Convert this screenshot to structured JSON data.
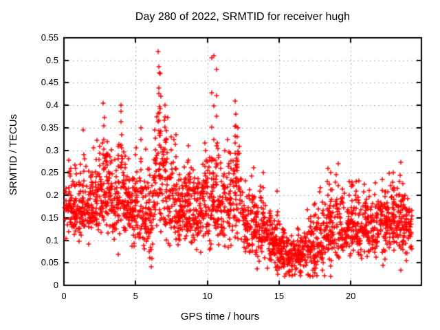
{
  "chart_data": {
    "type": "scatter",
    "title": "Day 280 of 2022, SRMTID for receiver hugh",
    "xlabel": "GPS time / hours",
    "ylabel": "SRMTID / TECUs",
    "xlim": [
      0,
      24.93
    ],
    "ylim": [
      0,
      0.55
    ],
    "xtick_labels": [
      "0",
      "5",
      "10",
      "15",
      "20"
    ],
    "ytick_labels": [
      "0",
      "0.05",
      "0.1",
      "0.15",
      "0.2",
      "0.25",
      "0.3",
      "0.35",
      "0.4",
      "0.45",
      "0.5",
      "0.55"
    ],
    "grid": true,
    "legend": null,
    "marker": {
      "symbol": "plus",
      "size": 7,
      "color": "#ff0000"
    },
    "colors": {
      "background": "#ffffff",
      "axis": "#000000",
      "grid": "#aaaaaa",
      "points": "#ff0000"
    },
    "seed": 42,
    "bursts": 430,
    "time_range": [
      0.05,
      24.25
    ],
    "envelope_note": "triples of [hour, typical_value, spread] read from the plot",
    "envelope": [
      [
        0.0,
        0.19,
        0.038
      ],
      [
        0.5,
        0.182,
        0.034
      ],
      [
        1.0,
        0.175,
        0.034
      ],
      [
        1.5,
        0.172,
        0.032
      ],
      [
        2.0,
        0.18,
        0.034
      ],
      [
        2.5,
        0.192,
        0.04
      ],
      [
        3.0,
        0.205,
        0.042
      ],
      [
        3.5,
        0.185,
        0.036
      ],
      [
        4.0,
        0.195,
        0.046
      ],
      [
        4.5,
        0.168,
        0.032
      ],
      [
        5.0,
        0.17,
        0.038
      ],
      [
        5.5,
        0.158,
        0.04
      ],
      [
        6.0,
        0.14,
        0.048
      ],
      [
        6.5,
        0.225,
        0.058
      ],
      [
        7.0,
        0.225,
        0.055
      ],
      [
        7.5,
        0.19,
        0.048
      ],
      [
        8.0,
        0.165,
        0.036
      ],
      [
        8.5,
        0.178,
        0.042
      ],
      [
        9.0,
        0.16,
        0.036
      ],
      [
        9.5,
        0.17,
        0.04
      ],
      [
        10.0,
        0.182,
        0.052
      ],
      [
        10.5,
        0.188,
        0.052
      ],
      [
        11.0,
        0.17,
        0.044
      ],
      [
        11.5,
        0.182,
        0.048
      ],
      [
        12.0,
        0.205,
        0.052
      ],
      [
        12.5,
        0.15,
        0.04
      ],
      [
        13.0,
        0.132,
        0.035
      ],
      [
        13.5,
        0.125,
        0.034
      ],
      [
        14.0,
        0.112,
        0.03
      ],
      [
        14.5,
        0.1,
        0.028
      ],
      [
        15.0,
        0.082,
        0.024
      ],
      [
        15.5,
        0.07,
        0.022
      ],
      [
        16.0,
        0.064,
        0.02
      ],
      [
        16.5,
        0.07,
        0.022
      ],
      [
        17.0,
        0.076,
        0.026
      ],
      [
        17.5,
        0.09,
        0.03
      ],
      [
        18.0,
        0.105,
        0.034
      ],
      [
        18.5,
        0.12,
        0.038
      ],
      [
        19.0,
        0.13,
        0.038
      ],
      [
        19.5,
        0.122,
        0.034
      ],
      [
        20.0,
        0.13,
        0.034
      ],
      [
        20.5,
        0.14,
        0.034
      ],
      [
        21.0,
        0.13,
        0.03
      ],
      [
        21.5,
        0.122,
        0.03
      ],
      [
        22.0,
        0.13,
        0.03
      ],
      [
        22.5,
        0.14,
        0.032
      ],
      [
        23.0,
        0.15,
        0.034
      ],
      [
        23.5,
        0.148,
        0.034
      ],
      [
        24.0,
        0.132,
        0.03
      ]
    ],
    "spikes_note": "burst columns [hour, peak_value, n_points]",
    "spikes": [
      [
        1.35,
        0.345,
        3
      ],
      [
        2.05,
        0.305,
        2
      ],
      [
        2.78,
        0.405,
        6
      ],
      [
        3.0,
        0.32,
        4
      ],
      [
        4.0,
        0.4,
        8
      ],
      [
        5.35,
        0.35,
        5
      ],
      [
        6.35,
        0.345,
        5
      ],
      [
        6.62,
        0.52,
        9
      ],
      [
        6.72,
        0.47,
        5
      ],
      [
        7.05,
        0.4,
        6
      ],
      [
        7.5,
        0.33,
        4
      ],
      [
        7.8,
        0.335,
        5
      ],
      [
        8.7,
        0.31,
        4
      ],
      [
        9.9,
        0.3,
        4
      ],
      [
        10.35,
        0.505,
        4
      ],
      [
        10.45,
        0.51,
        3
      ],
      [
        10.65,
        0.48,
        5
      ],
      [
        11.2,
        0.3,
        3
      ],
      [
        11.95,
        0.41,
        7
      ],
      [
        12.1,
        0.35,
        6
      ],
      [
        13.9,
        0.25,
        4
      ],
      [
        14.9,
        0.21,
        3
      ],
      [
        18.4,
        0.26,
        4
      ],
      [
        18.6,
        0.25,
        3
      ],
      [
        19.1,
        0.27,
        3
      ],
      [
        20.35,
        0.23,
        3
      ],
      [
        21.0,
        0.225,
        3
      ],
      [
        22.2,
        0.235,
        2
      ],
      [
        23.0,
        0.25,
        3
      ],
      [
        23.35,
        0.23,
        3
      ]
    ],
    "low_outliers": [
      [
        6.1,
        0.042
      ],
      [
        6.15,
        0.06
      ],
      [
        15.7,
        0.03
      ],
      [
        16.1,
        0.025
      ],
      [
        17.0,
        0.025
      ],
      [
        17.35,
        0.02
      ],
      [
        17.5,
        0.028
      ],
      [
        23.5,
        0.033
      ]
    ]
  }
}
